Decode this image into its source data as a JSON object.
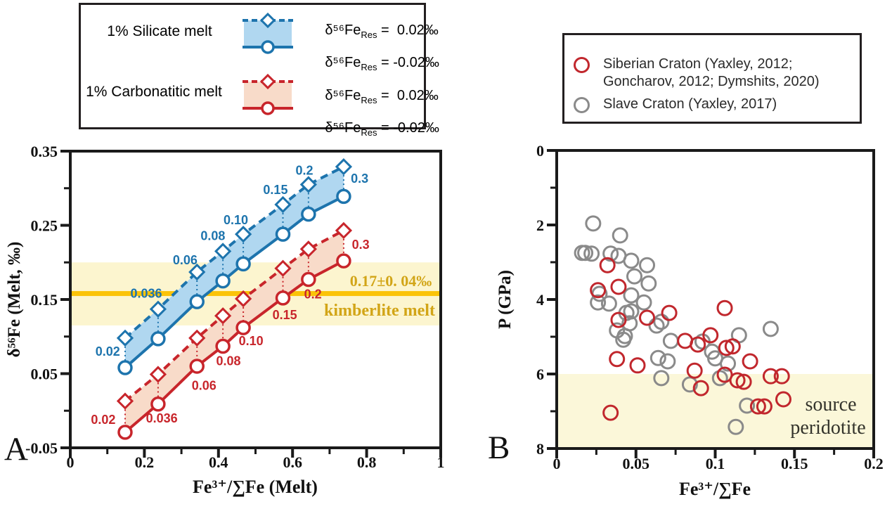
{
  "colors": {
    "blue": "#1d74ad",
    "blue_fill": "#b0d7f0",
    "red": "#c8252b",
    "red_fill": "#f8dbc9",
    "gold_line": "#fbc308",
    "gold_band": "#fcf5cf",
    "gold_text": "#d2a517",
    "scatter_red": "#c1272d",
    "scatter_gray": "#8a8a8a",
    "band_b": "#fbf7d9",
    "axis": "#1a1a1a",
    "peridotite_text": "#33332b",
    "white": "#ffffff"
  },
  "panel_letters": {
    "a": "A",
    "b": "B"
  },
  "legend_a": {
    "silicate": {
      "title": "1% Silicate melt",
      "entry1": {
        "prefix": "δ⁵⁶Fe",
        "sub": "Res",
        "value": " =  0.02‰"
      },
      "entry2": {
        "prefix": "δ⁵⁶Fe",
        "sub": "Res",
        "value": " = -0.02‰"
      }
    },
    "carbonatitic": {
      "title": "1% Carbonatitic melt",
      "entry1": {
        "prefix": "δ⁵⁶Fe",
        "sub": "Res",
        "value": " =  0.02‰"
      },
      "entry2": {
        "prefix": "δ⁵⁶Fe",
        "sub": "Res",
        "value": " = -0.02‰"
      }
    }
  },
  "legend_b": {
    "siberian_line1": "Siberian Craton (Yaxley, 2012;",
    "siberian_line2": "Goncharov, 2012; Dymshits, 2020)",
    "slave": "Slave Craton (Yaxley, 2017)"
  },
  "chart_data": [
    {
      "type": "line",
      "title": "",
      "xlabel": "Fe³⁺/∑Fe (Melt)",
      "ylabel": "δ⁵⁶Fe (Melt, ‰)",
      "xlim": [
        0,
        1
      ],
      "ylim": [
        -0.05,
        0.35
      ],
      "x_major_ticks": [
        0,
        0.2,
        0.4,
        0.6,
        0.8,
        1
      ],
      "x_tick_labels": [
        "0",
        "0.2",
        "0.4",
        "0.6",
        "0.8",
        "1"
      ],
      "x_minor_ticks": [
        0.1,
        0.3,
        0.5,
        0.7,
        0.9
      ],
      "y_major_ticks": [
        0.35,
        0.25,
        0.15,
        0.05,
        -0.05
      ],
      "y_tick_labels": [
        "0.35",
        "0.25",
        "0.15",
        "0.05",
        "-0.05"
      ],
      "y_minor_ticks": [
        0.3,
        0.2,
        0.1,
        0
      ],
      "x": [
        0.148,
        0.237,
        0.342,
        0.412,
        0.467,
        0.574,
        0.643,
        0.738
      ],
      "point_labels": [
        "0.02",
        "0.036",
        "0.06",
        "0.08",
        "0.10",
        "0.15",
        "0.2",
        "0.3"
      ],
      "series": [
        {
          "name": "1% Silicate melt, δ⁵⁶Fe_Res = 0.02‰",
          "group": "silicate",
          "style": "dashed",
          "marker": "diamond",
          "color_key": "blue",
          "values": [
            0.098,
            0.137,
            0.187,
            0.215,
            0.238,
            0.278,
            0.305,
            0.329
          ]
        },
        {
          "name": "1% Silicate melt, δ⁵⁶Fe_Res = -0.02‰",
          "group": "silicate",
          "style": "solid",
          "marker": "circle",
          "color_key": "blue",
          "values": [
            0.058,
            0.097,
            0.147,
            0.175,
            0.198,
            0.238,
            0.265,
            0.289
          ]
        },
        {
          "name": "1% Carbonatitic melt, δ⁵⁶Fe_Res = 0.02‰",
          "group": "carbonatitic",
          "style": "dashed",
          "marker": "diamond",
          "color_key": "red",
          "values": [
            0.013,
            0.049,
            0.098,
            0.128,
            0.151,
            0.192,
            0.218,
            0.243
          ]
        },
        {
          "name": "1% Carbonatitic melt, δ⁵⁶Fe_Res = -0.02‰",
          "group": "carbonatitic",
          "style": "solid",
          "marker": "circle",
          "color_key": "red",
          "values": [
            -0.029,
            0.009,
            0.06,
            0.087,
            0.112,
            0.152,
            0.177,
            0.202
          ]
        }
      ],
      "label_positions": {
        "silicate": [
          [
            0.101,
            0.08
          ],
          [
            0.205,
            0.158
          ],
          [
            0.31,
            0.203
          ],
          [
            0.385,
            0.236
          ],
          [
            0.447,
            0.257
          ],
          [
            0.554,
            0.298
          ],
          [
            0.632,
            0.324
          ],
          [
            0.781,
            0.313
          ]
        ],
        "carbonatitic": [
          [
            0.089,
            -0.012
          ],
          [
            0.247,
            -0.01
          ],
          [
            0.361,
            0.034
          ],
          [
            0.427,
            0.067
          ],
          [
            0.488,
            0.094
          ],
          [
            0.579,
            0.129
          ],
          [
            0.655,
            0.157
          ],
          [
            0.784,
            0.224
          ]
        ]
      },
      "kimberlite_band": {
        "y_from": 0.115,
        "y_to": 0.2,
        "line_y": 0.158,
        "annotation": "0.17±0. 04‰",
        "annotation2": "kimberlite melt"
      }
    },
    {
      "type": "scatter",
      "title": "",
      "xlabel": "Fe³⁺/∑Fe",
      "ylabel": "P (GPa)",
      "xlim": [
        0,
        0.2
      ],
      "ylim": [
        0,
        8
      ],
      "y_inverted": true,
      "x_major_ticks": [
        0,
        0.05,
        0.1,
        0.15,
        0.2
      ],
      "x_tick_labels": [
        "0",
        "0.05",
        "0.1",
        "0.15",
        "0.2"
      ],
      "x_minor_ticks": [
        0.025,
        0.075,
        0.125,
        0.175
      ],
      "y_major_ticks": [
        0,
        2,
        4,
        6,
        8
      ],
      "y_tick_labels": [
        "0",
        "2",
        "4",
        "6",
        "8"
      ],
      "y_minor_ticks": [
        1,
        3,
        5,
        7
      ],
      "series": [
        {
          "name": "Siberian Craton (Yaxley, 2012; Goncharov, 2012; Dymshits, 2020)",
          "color_key": "scatter_red",
          "points": [
            [
              0.032,
              3.08
            ],
            [
              0.026,
              3.75
            ],
            [
              0.039,
              3.66
            ],
            [
              0.039,
              4.55
            ],
            [
              0.057,
              4.49
            ],
            [
              0.071,
              4.36
            ],
            [
              0.038,
              5.6
            ],
            [
              0.051,
              5.77
            ],
            [
              0.034,
              7.04
            ],
            [
              0.081,
              5.11
            ],
            [
              0.089,
              5.21
            ],
            [
              0.097,
              4.96
            ],
            [
              0.106,
              4.23
            ],
            [
              0.107,
              5.3
            ],
            [
              0.111,
              5.26
            ],
            [
              0.087,
              5.91
            ],
            [
              0.091,
              6.38
            ],
            [
              0.106,
              6.02
            ],
            [
              0.114,
              6.17
            ],
            [
              0.118,
              6.21
            ],
            [
              0.122,
              5.66
            ],
            [
              0.135,
              6.06
            ],
            [
              0.142,
              6.06
            ],
            [
              0.143,
              6.68
            ],
            [
              0.127,
              6.87
            ],
            [
              0.131,
              6.87
            ]
          ]
        },
        {
          "name": "Slave Craton (Yaxley, 2017)",
          "color_key": "scatter_gray",
          "points": [
            [
              0.023,
              1.96
            ],
            [
              0.04,
              2.28
            ],
            [
              0.016,
              2.75
            ],
            [
              0.018,
              2.75
            ],
            [
              0.022,
              2.77
            ],
            [
              0.034,
              2.77
            ],
            [
              0.039,
              2.83
            ],
            [
              0.047,
              2.96
            ],
            [
              0.057,
              3.08
            ],
            [
              0.049,
              3.38
            ],
            [
              0.058,
              3.57
            ],
            [
              0.027,
              3.85
            ],
            [
              0.026,
              4.08
            ],
            [
              0.033,
              4.11
            ],
            [
              0.047,
              3.89
            ],
            [
              0.055,
              4.08
            ],
            [
              0.044,
              4.36
            ],
            [
              0.047,
              4.32
            ],
            [
              0.046,
              4.64
            ],
            [
              0.038,
              4.83
            ],
            [
              0.043,
              4.98
            ],
            [
              0.042,
              5.08
            ],
            [
              0.066,
              4.6
            ],
            [
              0.063,
              4.7
            ],
            [
              0.064,
              5.57
            ],
            [
              0.07,
              5.66
            ],
            [
              0.066,
              6.11
            ],
            [
              0.072,
              5.11
            ],
            [
              0.092,
              5.13
            ],
            [
              0.084,
              6.28
            ],
            [
              0.098,
              5.4
            ],
            [
              0.1,
              5.58
            ],
            [
              0.108,
              5.72
            ],
            [
              0.103,
              6.11
            ],
            [
              0.115,
              4.96
            ],
            [
              0.135,
              4.79
            ],
            [
              0.12,
              6.85
            ],
            [
              0.113,
              7.42
            ]
          ]
        }
      ],
      "band": {
        "p_from": 6,
        "p_to": 8,
        "label_line1": "source",
        "label_line2": "peridotite"
      }
    }
  ]
}
